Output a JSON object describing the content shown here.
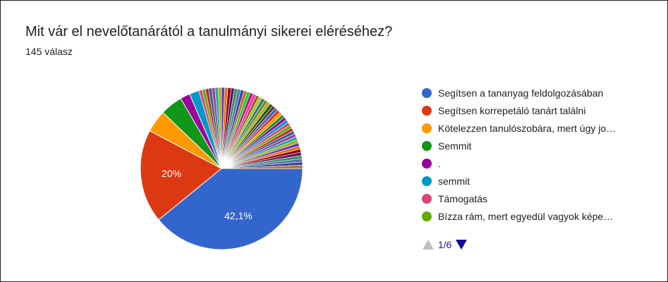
{
  "title": "Mit vár el nevelőtanárától a tanulmányi sikerei eléréséhez?",
  "subtitle": "145 válasz",
  "chart_data": {
    "type": "pie",
    "title": "Mit vár el nevelőtanárától a tanulmányi sikerei eléréséhez?",
    "legend_position": "right",
    "visible_slice_labels": [
      "42,1%",
      "20%"
    ],
    "legend": [
      {
        "name": "Segítsen a tananyag feldolgozásában",
        "color": "#3366cc"
      },
      {
        "name": "Segítsen korrepetáló tanárt találni",
        "color": "#dc3912"
      },
      {
        "name": "Kötelezzen tanulószobára, mert úgy jo…",
        "color": "#ff9900"
      },
      {
        "name": "Semmit",
        "color": "#109618"
      },
      {
        "name": ".",
        "color": "#990099"
      },
      {
        "name": "semmit",
        "color": "#0099c6"
      },
      {
        "name": "Támogatás",
        "color": "#dd4477"
      },
      {
        "name": "Bízza rám, mert egyedül vagyok képe…",
        "color": "#66aa00"
      }
    ],
    "slices": [
      {
        "value": 42.1,
        "color": "#3366cc",
        "label": "42,1%"
      },
      {
        "value": 20.0,
        "color": "#dc3912",
        "label": "20%"
      },
      {
        "value": 4.8,
        "color": "#ff9900",
        "label": ""
      },
      {
        "value": 4.8,
        "color": "#109618",
        "label": ""
      },
      {
        "value": 2.1,
        "color": "#990099",
        "label": ""
      },
      {
        "value": 2.1,
        "color": "#0099c6",
        "label": ""
      },
      {
        "value": 0.69,
        "color": "#dd4477"
      },
      {
        "value": 0.69,
        "color": "#66aa00"
      },
      {
        "value": 0.69,
        "color": "#b82e2e"
      },
      {
        "value": 0.69,
        "color": "#316395"
      },
      {
        "value": 0.69,
        "color": "#994499"
      },
      {
        "value": 0.69,
        "color": "#22aa99"
      },
      {
        "value": 0.69,
        "color": "#aaaa11"
      },
      {
        "value": 0.69,
        "color": "#6633cc"
      },
      {
        "value": 0.69,
        "color": "#e67300"
      },
      {
        "value": 0.69,
        "color": "#8b0707"
      },
      {
        "value": 0.69,
        "color": "#651067"
      },
      {
        "value": 0.69,
        "color": "#329262"
      },
      {
        "value": 0.69,
        "color": "#5574a6"
      },
      {
        "value": 0.69,
        "color": "#3b3eac"
      },
      {
        "value": 0.69,
        "color": "#b77322"
      },
      {
        "value": 0.69,
        "color": "#16d620"
      },
      {
        "value": 0.69,
        "color": "#b91383"
      },
      {
        "value": 0.69,
        "color": "#f4359e"
      },
      {
        "value": 0.69,
        "color": "#9c5935"
      },
      {
        "value": 0.69,
        "color": "#a9c413"
      },
      {
        "value": 0.69,
        "color": "#2a778d"
      },
      {
        "value": 0.69,
        "color": "#668d1c"
      },
      {
        "value": 0.69,
        "color": "#bea413"
      },
      {
        "value": 0.69,
        "color": "#0c5922"
      },
      {
        "value": 0.69,
        "color": "#743411"
      },
      {
        "value": 0.69,
        "color": "#3366cc"
      },
      {
        "value": 0.69,
        "color": "#dc3912"
      },
      {
        "value": 0.69,
        "color": "#ff9900"
      },
      {
        "value": 0.69,
        "color": "#109618"
      },
      {
        "value": 0.69,
        "color": "#990099"
      },
      {
        "value": 0.69,
        "color": "#0099c6"
      },
      {
        "value": 0.69,
        "color": "#dd4477"
      },
      {
        "value": 0.69,
        "color": "#66aa00"
      },
      {
        "value": 0.69,
        "color": "#b82e2e"
      },
      {
        "value": 0.69,
        "color": "#316395"
      },
      {
        "value": 0.69,
        "color": "#994499"
      },
      {
        "value": 0.69,
        "color": "#22aa99"
      },
      {
        "value": 0.69,
        "color": "#aaaa11"
      },
      {
        "value": 0.69,
        "color": "#6633cc"
      },
      {
        "value": 0.69,
        "color": "#e67300"
      },
      {
        "value": 0.69,
        "color": "#8b0707"
      },
      {
        "value": 0.69,
        "color": "#651067"
      },
      {
        "value": 0.69,
        "color": "#329262"
      },
      {
        "value": 0.69,
        "color": "#5574a6"
      },
      {
        "value": 0.69,
        "color": "#3b3eac"
      },
      {
        "value": 0.69,
        "color": "#b77322"
      }
    ]
  },
  "pager": {
    "text": "1/6"
  }
}
